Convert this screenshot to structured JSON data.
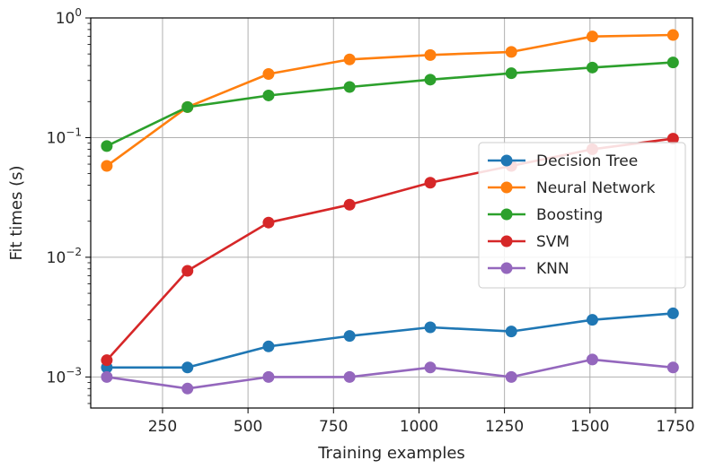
{
  "chart_data": {
    "type": "line",
    "title": "",
    "xlabel": "Training examples",
    "ylabel": "Fit times (s)",
    "y_scale": "log",
    "xlim": [
      40,
      1800
    ],
    "ylim": [
      0.00055,
      1.0
    ],
    "grid": true,
    "legend_position": "center-right",
    "x_ticks": [
      {
        "value": 250,
        "label": "250"
      },
      {
        "value": 500,
        "label": "500"
      },
      {
        "value": 750,
        "label": "750"
      },
      {
        "value": 1000,
        "label": "1000"
      },
      {
        "value": 1250,
        "label": "1250"
      },
      {
        "value": 1500,
        "label": "1500"
      },
      {
        "value": 1750,
        "label": "1750"
      }
    ],
    "y_ticks": [
      {
        "value": 0.001,
        "base": "10",
        "exp": "−3"
      },
      {
        "value": 0.01,
        "base": "10",
        "exp": "−2"
      },
      {
        "value": 0.1,
        "base": "10",
        "exp": "−1"
      },
      {
        "value": 1,
        "base": "10",
        "exp": "0"
      }
    ],
    "x": [
      87,
      323,
      560,
      797,
      1033,
      1270,
      1507,
      1743
    ],
    "series": [
      {
        "name": "Decision Tree",
        "color": "#1f77b4",
        "values": [
          0.0012,
          0.0012,
          0.0018,
          0.0022,
          0.0026,
          0.0024,
          0.003,
          0.0034
        ]
      },
      {
        "name": "Neural Network",
        "color": "#ff7f0e",
        "values": [
          0.058,
          0.18,
          0.34,
          0.45,
          0.49,
          0.52,
          0.7,
          0.72
        ]
      },
      {
        "name": "Boosting",
        "color": "#2ca02c",
        "values": [
          0.085,
          0.18,
          0.225,
          0.265,
          0.305,
          0.345,
          0.385,
          0.425
        ]
      },
      {
        "name": "SVM",
        "color": "#d62728",
        "values": [
          0.00138,
          0.0077,
          0.0195,
          0.0275,
          0.042,
          0.058,
          0.08,
          0.098
        ]
      },
      {
        "name": "KNN",
        "color": "#9467bd",
        "values": [
          0.001,
          0.0008,
          0.001,
          0.001,
          0.0012,
          0.001,
          0.0014,
          0.0012
        ]
      }
    ]
  }
}
